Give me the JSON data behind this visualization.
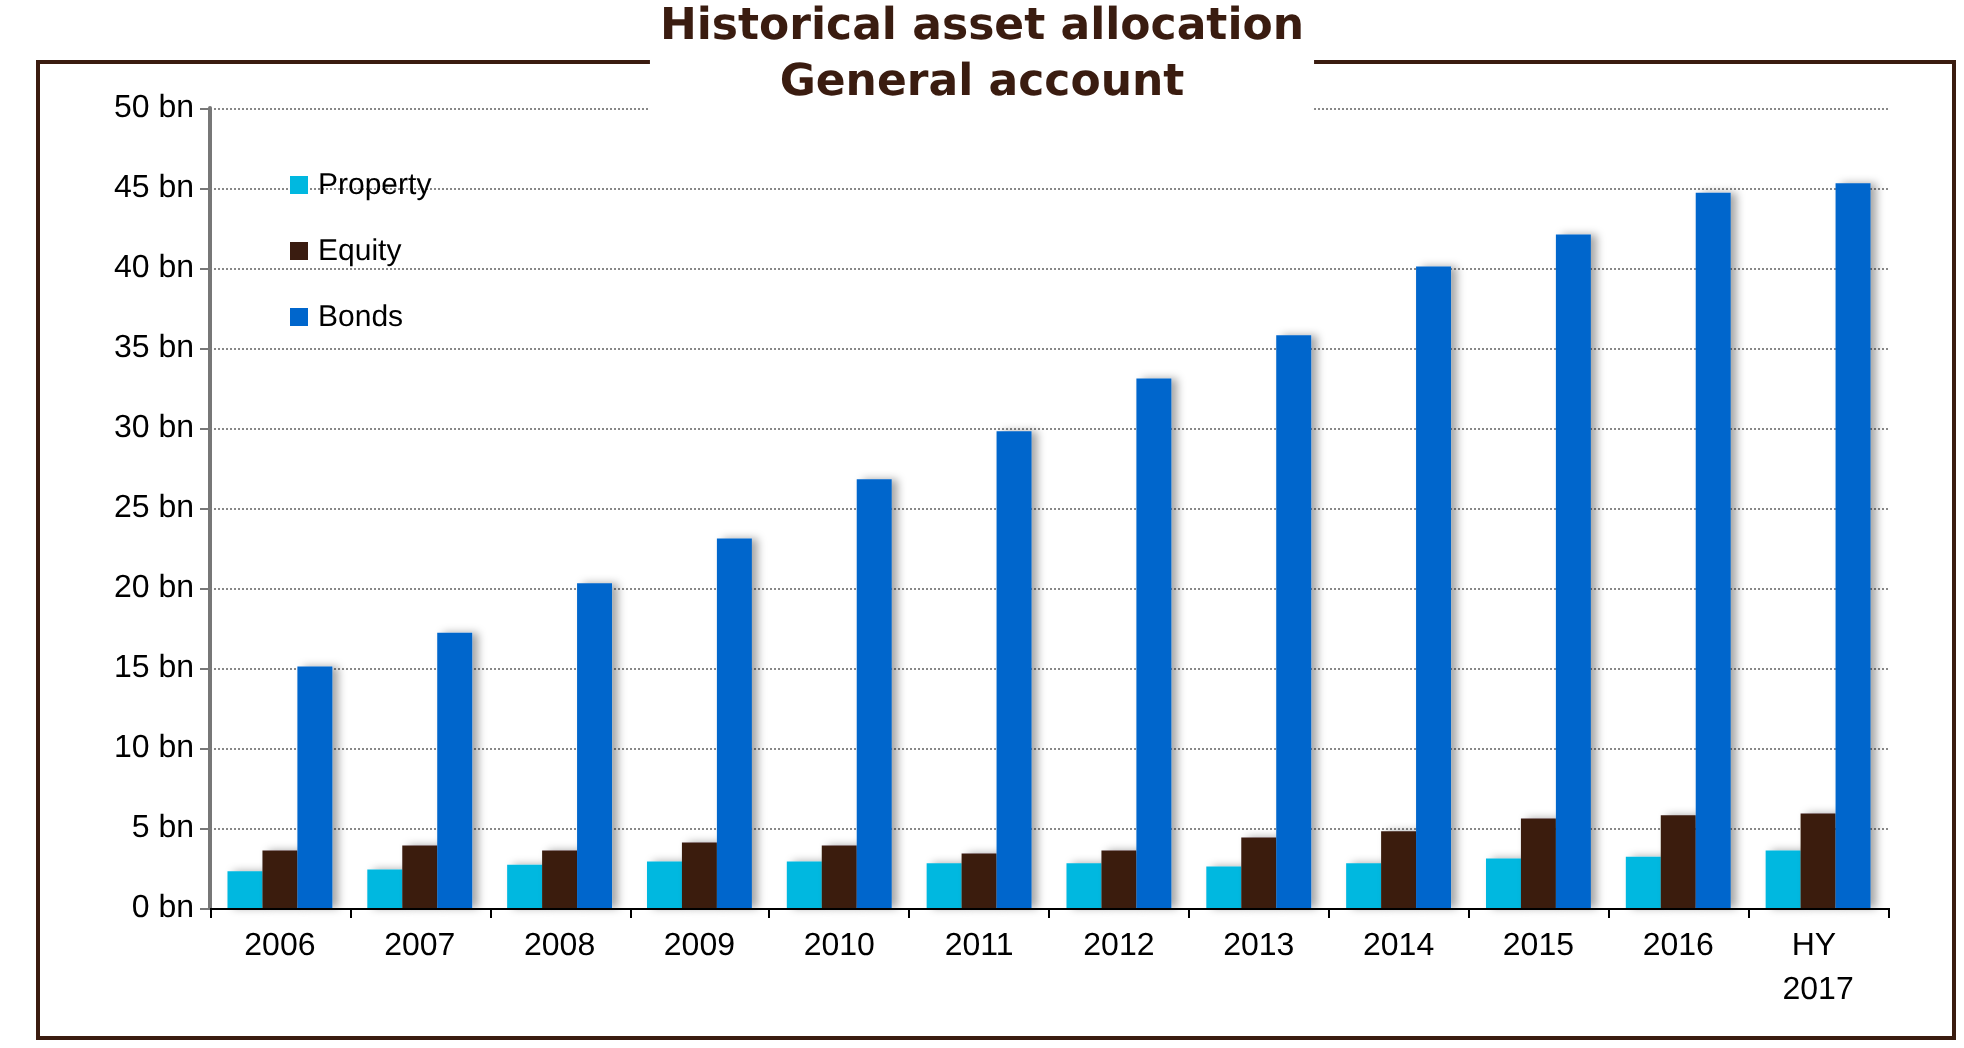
{
  "chart_data": {
    "type": "bar",
    "title": "Historical asset allocation\nGeneral account",
    "categories": [
      "2006",
      "2007",
      "2008",
      "2009",
      "2010",
      "2011",
      "2012",
      "2013",
      "2014",
      "2015",
      "2016",
      "HY 2017"
    ],
    "series": [
      {
        "name": "Property",
        "color": "#00b8e0",
        "values": [
          2.3,
          2.4,
          2.7,
          2.9,
          2.9,
          2.8,
          2.8,
          2.6,
          2.8,
          3.1,
          3.2,
          3.6
        ]
      },
      {
        "name": "Equity",
        "color": "#3a1c10",
        "values": [
          3.6,
          3.9,
          3.6,
          4.1,
          3.9,
          3.4,
          3.6,
          4.4,
          4.8,
          5.6,
          5.8,
          5.9
        ]
      },
      {
        "name": "Bonds",
        "color": "#0066cc",
        "values": [
          15.1,
          17.2,
          20.3,
          23.1,
          26.8,
          29.8,
          33.1,
          35.8,
          40.1,
          42.1,
          44.7,
          45.3
        ]
      }
    ],
    "ylim": [
      0,
      50
    ],
    "yticks": [
      {
        "value": 0,
        "label": "0 bn"
      },
      {
        "value": 5,
        "label": "5 bn"
      },
      {
        "value": 10,
        "label": "10 bn"
      },
      {
        "value": 15,
        "label": "15 bn"
      },
      {
        "value": 20,
        "label": "20 bn"
      },
      {
        "value": 25,
        "label": "25 bn"
      },
      {
        "value": 30,
        "label": "30 bn"
      },
      {
        "value": 35,
        "label": "35 bn"
      },
      {
        "value": 40,
        "label": "40 bn"
      },
      {
        "value": 45,
        "label": "45 bn"
      },
      {
        "value": 50,
        "label": "50 bn"
      }
    ],
    "grid": "y",
    "legend": "top left"
  }
}
